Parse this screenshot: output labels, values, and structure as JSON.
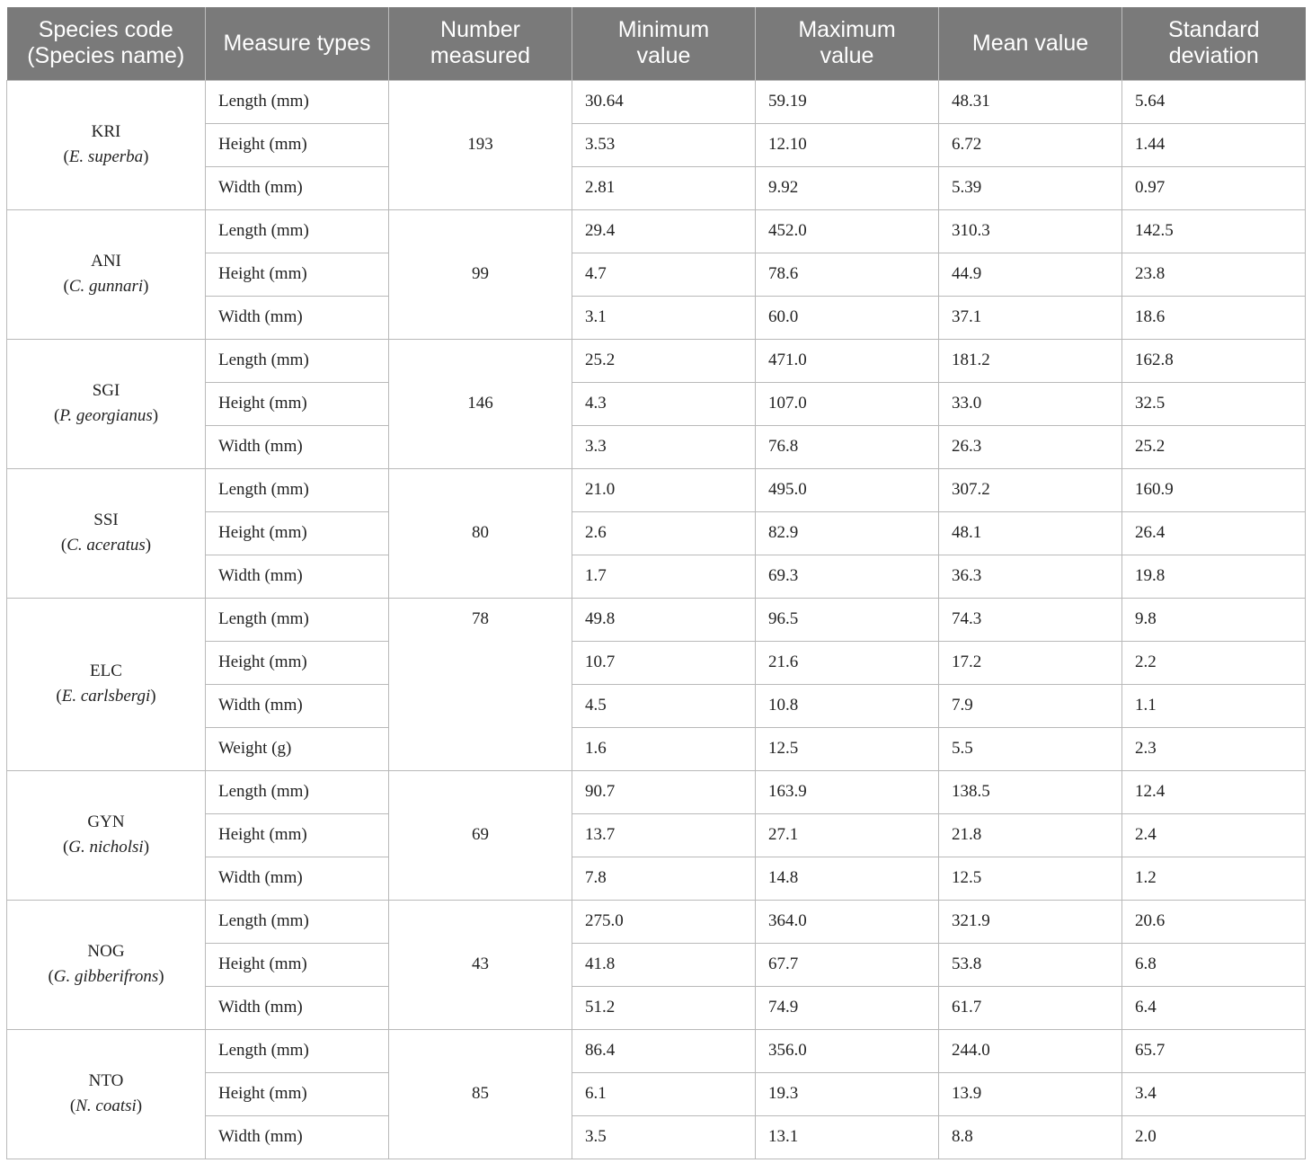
{
  "headers": [
    {
      "line1": "Species code",
      "line2": "(Species name)"
    },
    {
      "line1": "Measure types",
      "line2": ""
    },
    {
      "line1": "Number",
      "line2": "measured"
    },
    {
      "line1": "Minimum",
      "line2": "value"
    },
    {
      "line1": "Maximum",
      "line2": "value"
    },
    {
      "line1": "Mean value",
      "line2": ""
    },
    {
      "line1": "Standard",
      "line2": "deviation"
    }
  ],
  "species": [
    {
      "code": "KRI",
      "name": "E. superba",
      "count": "193",
      "count_align": "middle",
      "rows": [
        {
          "measure": "Length (mm)",
          "min": "30.64",
          "max": "59.19",
          "mean": "48.31",
          "sd": "5.64"
        },
        {
          "measure": "Height (mm)",
          "min": "3.53",
          "max": "12.10",
          "mean": "6.72",
          "sd": "1.44"
        },
        {
          "measure": "Width (mm)",
          "min": "2.81",
          "max": "9.92",
          "mean": "5.39",
          "sd": "0.97"
        }
      ]
    },
    {
      "code": "ANI",
      "name": "C. gunnari",
      "count": "99",
      "count_align": "middle",
      "rows": [
        {
          "measure": "Length (mm)",
          "min": "29.4",
          "max": "452.0",
          "mean": "310.3",
          "sd": "142.5"
        },
        {
          "measure": "Height (mm)",
          "min": "4.7",
          "max": "78.6",
          "mean": "44.9",
          "sd": "23.8"
        },
        {
          "measure": "Width (mm)",
          "min": "3.1",
          "max": "60.0",
          "mean": "37.1",
          "sd": "18.6"
        }
      ]
    },
    {
      "code": "SGI",
      "name": "P. georgianus",
      "count": "146",
      "count_align": "middle",
      "rows": [
        {
          "measure": "Length (mm)",
          "min": "25.2",
          "max": "471.0",
          "mean": "181.2",
          "sd": "162.8"
        },
        {
          "measure": "Height (mm)",
          "min": "4.3",
          "max": "107.0",
          "mean": "33.0",
          "sd": "32.5"
        },
        {
          "measure": "Width (mm)",
          "min": "3.3",
          "max": "76.8",
          "mean": "26.3",
          "sd": "25.2"
        }
      ]
    },
    {
      "code": "SSI",
      "name": "C. aceratus",
      "count": "80",
      "count_align": "middle",
      "rows": [
        {
          "measure": "Length (mm)",
          "min": "21.0",
          "max": "495.0",
          "mean": "307.2",
          "sd": "160.9"
        },
        {
          "measure": "Height (mm)",
          "min": "2.6",
          "max": "82.9",
          "mean": "48.1",
          "sd": "26.4"
        },
        {
          "measure": "Width (mm)",
          "min": "1.7",
          "max": "69.3",
          "mean": "36.3",
          "sd": "19.8"
        }
      ]
    },
    {
      "code": "ELC",
      "name": "E. carlsbergi",
      "count": "78",
      "count_align": "top",
      "rows": [
        {
          "measure": "Length (mm)",
          "min": "49.8",
          "max": "96.5",
          "mean": "74.3",
          "sd": "9.8"
        },
        {
          "measure": "Height (mm)",
          "min": "10.7",
          "max": "21.6",
          "mean": "17.2",
          "sd": "2.2"
        },
        {
          "measure": "Width (mm)",
          "min": "4.5",
          "max": "10.8",
          "mean": "7.9",
          "sd": "1.1"
        },
        {
          "measure": "Weight (g)",
          "min": "1.6",
          "max": "12.5",
          "mean": "5.5",
          "sd": "2.3"
        }
      ]
    },
    {
      "code": "GYN",
      "name": "G. nicholsi",
      "count": "69",
      "count_align": "middle",
      "rows": [
        {
          "measure": "Length (mm)",
          "min": "90.7",
          "max": "163.9",
          "mean": "138.5",
          "sd": "12.4"
        },
        {
          "measure": "Height (mm)",
          "min": "13.7",
          "max": "27.1",
          "mean": "21.8",
          "sd": "2.4"
        },
        {
          "measure": "Width (mm)",
          "min": "7.8",
          "max": "14.8",
          "mean": "12.5",
          "sd": "1.2"
        }
      ]
    },
    {
      "code": "NOG",
      "name": "G. gibberifrons",
      "count": "43",
      "count_align": "middle",
      "rows": [
        {
          "measure": "Length (mm)",
          "min": "275.0",
          "max": "364.0",
          "mean": "321.9",
          "sd": "20.6"
        },
        {
          "measure": "Height (mm)",
          "min": "41.8",
          "max": "67.7",
          "mean": "53.8",
          "sd": "6.8"
        },
        {
          "measure": "Width (mm)",
          "min": "51.2",
          "max": "74.9",
          "mean": "61.7",
          "sd": "6.4"
        }
      ]
    },
    {
      "code": "NTO",
      "name": "N. coatsi",
      "count": "85",
      "count_align": "middle",
      "rows": [
        {
          "measure": "Length (mm)",
          "min": "86.4",
          "max": "356.0",
          "mean": "244.0",
          "sd": "65.7"
        },
        {
          "measure": "Height (mm)",
          "min": "6.1",
          "max": "19.3",
          "mean": "13.9",
          "sd": "3.4"
        },
        {
          "measure": "Width (mm)",
          "min": "3.5",
          "max": "13.1",
          "mean": "8.8",
          "sd": "2.0"
        }
      ]
    }
  ]
}
